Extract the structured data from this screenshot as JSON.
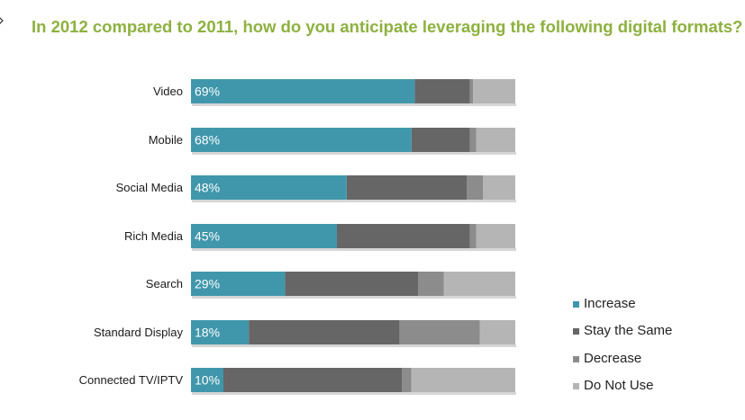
{
  "chart_data": {
    "type": "bar",
    "stacked": true,
    "orientation": "horizontal",
    "title": "In 2012 compared to 2011, how do you anticipate leveraging the following digital formats?",
    "categories": [
      "Video",
      "Mobile",
      "Social Media",
      "Rich Media",
      "Search",
      "Standard Display",
      "Connected TV/IPTV"
    ],
    "value_labels": [
      "69%",
      "68%",
      "48%",
      "45%",
      "29%",
      "18%",
      "10%"
    ],
    "series": [
      {
        "name": "Increase",
        "color": "#4097ab",
        "values": [
          69,
          68,
          48,
          45,
          29,
          18,
          10
        ]
      },
      {
        "name": "Stay the Same",
        "color": "#666666",
        "values": [
          17,
          18,
          37,
          41,
          41,
          47,
          55
        ]
      },
      {
        "name": "Decrease",
        "color": "#8c8c8c",
        "values": [
          1,
          2,
          5,
          2,
          8,
          25,
          3
        ]
      },
      {
        "name": "Do Not Use",
        "color": "#b5b5b5",
        "values": [
          13,
          12,
          10,
          12,
          22,
          11,
          32
        ]
      }
    ],
    "xlim": [
      0,
      100
    ],
    "grid": false,
    "legend_position": "bottom-right"
  }
}
